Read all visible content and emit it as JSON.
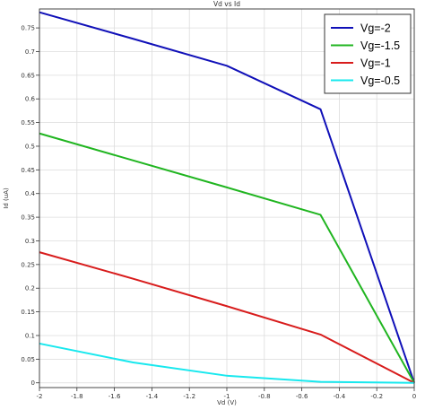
{
  "chart_data": {
    "type": "line",
    "title": "Vd vs Id",
    "xlabel": "Vd (V)",
    "ylabel": "Id (uA)",
    "xlim": [
      -2,
      0
    ],
    "ylim": [
      -0.01,
      0.79
    ],
    "x_ticks": [
      "-2",
      "-1.8",
      "-1.6",
      "-1.4",
      "-1.2",
      "-1",
      "-0.8",
      "-0.6",
      "-0.4",
      "-0.2",
      "0"
    ],
    "y_ticks": [
      "0",
      "0.05",
      "0.1",
      "0.15",
      "0.2",
      "0.25",
      "0.3",
      "0.35",
      "0.4",
      "0.45",
      "0.5",
      "0.55",
      "0.6",
      "0.65",
      "0.7",
      "0.75"
    ],
    "grid": true,
    "legend_position": "top-right",
    "series": [
      {
        "name": "Vg=-2",
        "color": "#1010b8",
        "points": [
          [
            -2,
            0.783
          ],
          [
            -1.5,
            0.727
          ],
          [
            -1,
            0.67
          ],
          [
            -0.5,
            0.578
          ],
          [
            0,
            0.0
          ]
        ]
      },
      {
        "name": "Vg=-1.5",
        "color": "#20b520",
        "points": [
          [
            -2,
            0.527
          ],
          [
            -1.5,
            0.47
          ],
          [
            -1,
            0.413
          ],
          [
            -0.5,
            0.355
          ],
          [
            0,
            0.0
          ]
        ]
      },
      {
        "name": "Vg=-1",
        "color": "#d81c1c",
        "points": [
          [
            -2,
            0.276
          ],
          [
            -1.5,
            0.22
          ],
          [
            -1,
            0.162
          ],
          [
            -0.5,
            0.102
          ],
          [
            0,
            0.0
          ]
        ]
      },
      {
        "name": "Vg=-0.5",
        "color": "#18e8ee",
        "points": [
          [
            -2,
            0.083
          ],
          [
            -1.5,
            0.043
          ],
          [
            -1,
            0.015
          ],
          [
            -0.5,
            0.002
          ],
          [
            0,
            0.0
          ]
        ]
      }
    ]
  }
}
